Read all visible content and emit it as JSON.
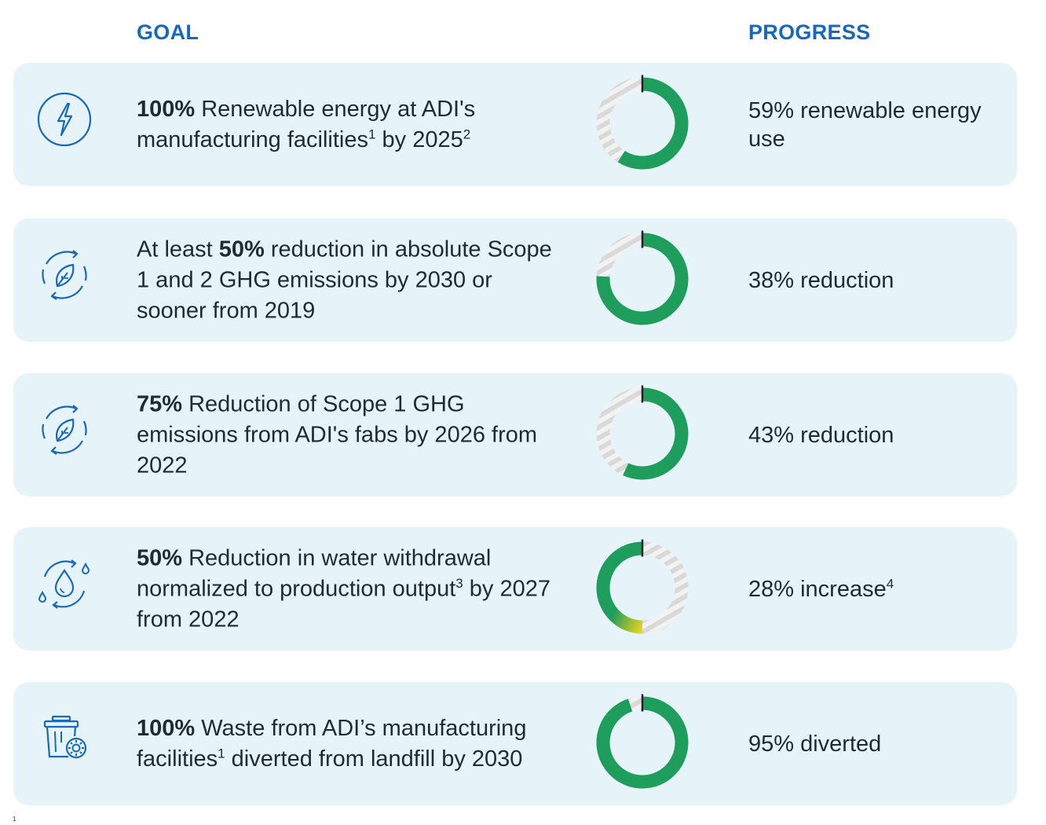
{
  "headers": {
    "goal": "GOAL",
    "progress": "PROGRESS"
  },
  "colors": {
    "header": "#1a68b8",
    "row_background": "#e6f3f9",
    "donut_fill": "#1f9d5c",
    "donut_track": "#d9d9d9",
    "donut_yellow": "#e8d21f",
    "icon_stroke": "#1a68b8"
  },
  "rows": [
    {
      "icon": "lightning-bolt-icon",
      "goal": {
        "bold": "100%",
        "text": " Renewable energy at ADI's manufacturing facilities",
        "sup1": "1",
        "text2": " by 2025",
        "sup2": "2"
      },
      "progress_value": 59,
      "progress_direction": "clockwise",
      "progress": {
        "text": "59% renewable energy use",
        "sup": ""
      }
    },
    {
      "icon": "leaf-cycle-icon",
      "goal": {
        "pre": "At least ",
        "bold": "50%",
        "text": " reduction in absolute Scope 1 and 2 GHG emissions by 2030 or sooner from 2019"
      },
      "progress_value": 76,
      "progress_direction": "clockwise",
      "progress": {
        "text": "38% reduction",
        "sup": ""
      }
    },
    {
      "icon": "leaf-cycle-icon",
      "goal": {
        "bold": "75%",
        "text": " Reduction of Scope 1 GHG emissions from ADI's fabs by 2026 from 2022"
      },
      "progress_value": 57,
      "progress_direction": "clockwise",
      "progress": {
        "text": "43% reduction",
        "sup": ""
      }
    },
    {
      "icon": "water-drop-cycle-icon",
      "goal": {
        "bold": "50%",
        "text": " Reduction in water withdrawal normalized to production output",
        "sup1": "3",
        "text2": " by 2027 from 2022"
      },
      "progress_value": 50,
      "progress_direction": "counterclockwise",
      "progress": {
        "text": "28% increase",
        "sup": "4"
      }
    },
    {
      "icon": "recycle-bin-icon",
      "goal": {
        "bold": "100%",
        "text": " Waste from ADI’s manufacturing facilities",
        "sup1": "1",
        "text2": " diverted from landfill by 2030"
      },
      "progress_value": 95,
      "progress_direction": "clockwise",
      "progress": {
        "text": "95% diverted",
        "sup": ""
      }
    }
  ],
  "footnote_mark": "1"
}
